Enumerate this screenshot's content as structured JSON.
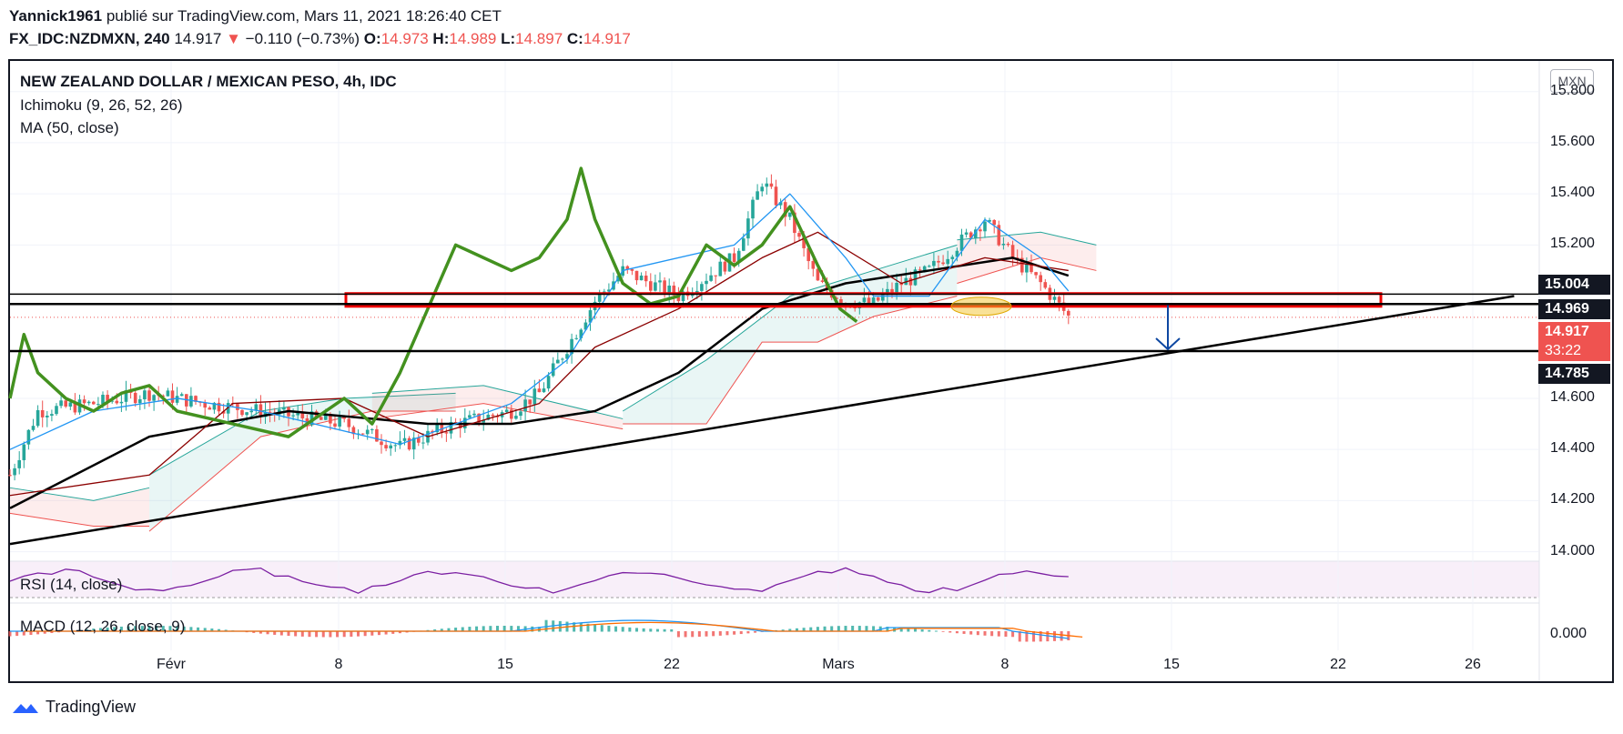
{
  "header": {
    "author": "Yannick1961",
    "published_text": "publié sur TradingView.com, Mars 11, 2021 18:26:40 CET",
    "symbol": "FX_IDC:NZDMXN, 240",
    "last": "14.917",
    "change": "−0.110 (−0.73%)",
    "o_label": "O:",
    "o_value": "14.973",
    "h_label": "H:",
    "h_value": "14.989",
    "l_label": "L:",
    "l_value": "14.897",
    "c_label": "C:",
    "c_value": "14.917"
  },
  "legend": {
    "title": "NEW ZEALAND DOLLAR / MEXICAN PESO, 4h, IDC",
    "ichimoku": "Ichimoku (9, 26, 52, 26)",
    "ma": "MA (50, close)",
    "rsi": "RSI (14, close)",
    "macd": "MACD (12, 26, close, 9)"
  },
  "currency": "MXN",
  "price_tags": {
    "upper": "15.004",
    "resistance": "14.969",
    "last": "14.917",
    "countdown": "33:22",
    "support": "14.785"
  },
  "colors": {
    "up": "#26a69a",
    "down": "#ef5350",
    "chikou": "#43911f",
    "tenkan": "#2196f3",
    "kijun": "#8b0000",
    "ma": "#000000",
    "rsi": "#7b1fa2",
    "macd": "#2196f3",
    "signal": "#ff6d00"
  },
  "footer": {
    "brand": "TradingView"
  },
  "chart_data": {
    "type": "line",
    "y_ticks": [
      "15.800",
      "15.600",
      "15.400",
      "15.200",
      "14.600",
      "14.400",
      "14.200",
      "14.000"
    ],
    "ylim": [
      13.97,
      15.92
    ],
    "x_ticks": [
      "Févr",
      "8",
      "15",
      "22",
      "Mars",
      "8",
      "15",
      "22",
      "26"
    ],
    "macd_tick": "0.000",
    "series": [
      {
        "name": "Ichimoku (9, 26, 52, 26)",
        "x": [
          0,
          5,
          10,
          15,
          20,
          23,
          26,
          29,
          32,
          35,
          38,
          40
        ],
        "values": [
          14.6,
          14.65,
          14.57,
          14.55,
          14.58,
          15.35,
          15.0,
          15.05,
          15.1,
          15.15,
          15.2,
          15.1
        ]
      },
      {
        "name": "MA (50, close)",
        "x": [
          0,
          5,
          10,
          15,
          18,
          21,
          24,
          27,
          30,
          33,
          36,
          38
        ],
        "values": [
          14.17,
          14.45,
          14.55,
          14.5,
          14.5,
          14.55,
          14.7,
          14.95,
          15.05,
          15.1,
          15.15,
          15.08
        ]
      }
    ],
    "annotations": {
      "horizontal_lines": [
        14.969,
        14.785
      ],
      "resistance_zone": [
        14.96,
        15.01
      ],
      "trendline": [
        [
          0,
          14.03
        ],
        [
          54,
          15.0
        ]
      ],
      "arrow_target": 14.785
    }
  }
}
